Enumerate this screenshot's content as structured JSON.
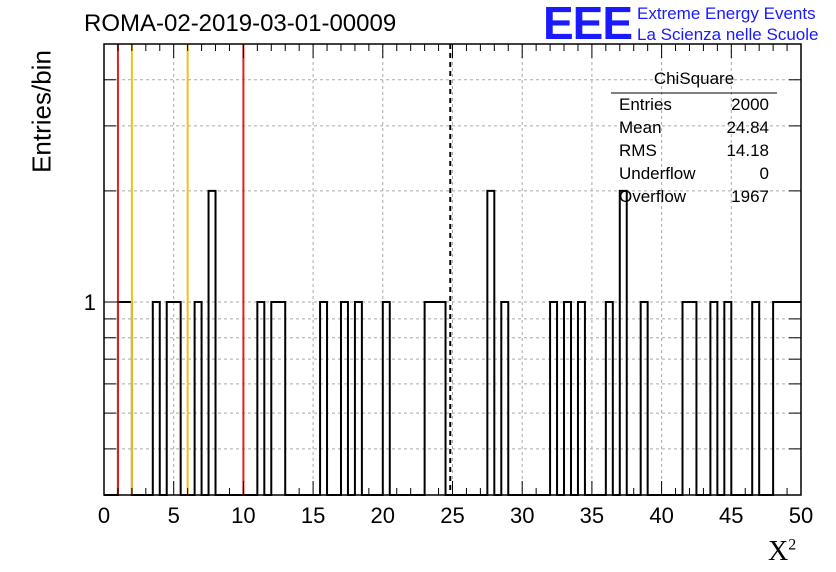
{
  "chart_data": {
    "type": "bar",
    "title": "ROMA-02-2019-03-01-00009",
    "xlabel": "X",
    "xlabel_sup": "2",
    "ylabel": "Entries/bin",
    "xlim": [
      0,
      50
    ],
    "ylim": [
      0.3,
      5
    ],
    "y_scale": "log",
    "grid": true,
    "x_ticks": [
      "0",
      "5",
      "10",
      "15",
      "20",
      "25",
      "30",
      "35",
      "40",
      "45",
      "50"
    ],
    "y_tick_labels": [
      {
        "value": 1,
        "label": "1"
      }
    ],
    "bin_width": 0.5,
    "bins": [
      {
        "x": 1.0,
        "y": 1
      },
      {
        "x": 1.5,
        "y": 1
      },
      {
        "x": 3.5,
        "y": 1
      },
      {
        "x": 4.5,
        "y": 1
      },
      {
        "x": 5.0,
        "y": 1
      },
      {
        "x": 6.5,
        "y": 1
      },
      {
        "x": 7.5,
        "y": 2
      },
      {
        "x": 11.0,
        "y": 1
      },
      {
        "x": 12.0,
        "y": 1
      },
      {
        "x": 12.5,
        "y": 1
      },
      {
        "x": 15.5,
        "y": 1
      },
      {
        "x": 17.0,
        "y": 1
      },
      {
        "x": 18.0,
        "y": 1
      },
      {
        "x": 20.0,
        "y": 1
      },
      {
        "x": 23.0,
        "y": 1
      },
      {
        "x": 23.5,
        "y": 1
      },
      {
        "x": 24.0,
        "y": 1
      },
      {
        "x": 27.5,
        "y": 2
      },
      {
        "x": 28.5,
        "y": 1
      },
      {
        "x": 32.0,
        "y": 1
      },
      {
        "x": 33.0,
        "y": 1
      },
      {
        "x": 34.0,
        "y": 1
      },
      {
        "x": 36.0,
        "y": 1
      },
      {
        "x": 37.0,
        "y": 2
      },
      {
        "x": 38.5,
        "y": 1
      },
      {
        "x": 41.5,
        "y": 1
      },
      {
        "x": 42.0,
        "y": 1
      },
      {
        "x": 43.5,
        "y": 1
      },
      {
        "x": 44.5,
        "y": 1
      },
      {
        "x": 46.5,
        "y": 1
      },
      {
        "x": 48.0,
        "y": 1
      },
      {
        "x": 48.5,
        "y": 1
      },
      {
        "x": 49.0,
        "y": 1
      },
      {
        "x": 49.5,
        "y": 1
      }
    ],
    "vertical_lines": [
      {
        "x": 1.0,
        "color": "#e02020",
        "style": "solid"
      },
      {
        "x": 2.0,
        "color": "#f0c020",
        "style": "solid"
      },
      {
        "x": 6.0,
        "color": "#f0c020",
        "style": "solid"
      },
      {
        "x": 10.0,
        "color": "#e02020",
        "style": "solid"
      },
      {
        "x": 24.84,
        "color": "#000000",
        "style": "dashed"
      }
    ],
    "stats_box": {
      "title": "ChiSquare",
      "rows": [
        {
          "label": "Entries",
          "value": "2000"
        },
        {
          "label": "Mean",
          "value": "24.84"
        },
        {
          "label": "RMS",
          "value": "14.18"
        },
        {
          "label": "Underflow",
          "value": "0"
        },
        {
          "label": "Overflow",
          "value": "1967"
        }
      ]
    }
  },
  "logo": {
    "text": "EEE",
    "line1": "Extreme Energy Events",
    "line2": "La Scienza nelle Scuole",
    "color": "#1a1aff"
  }
}
